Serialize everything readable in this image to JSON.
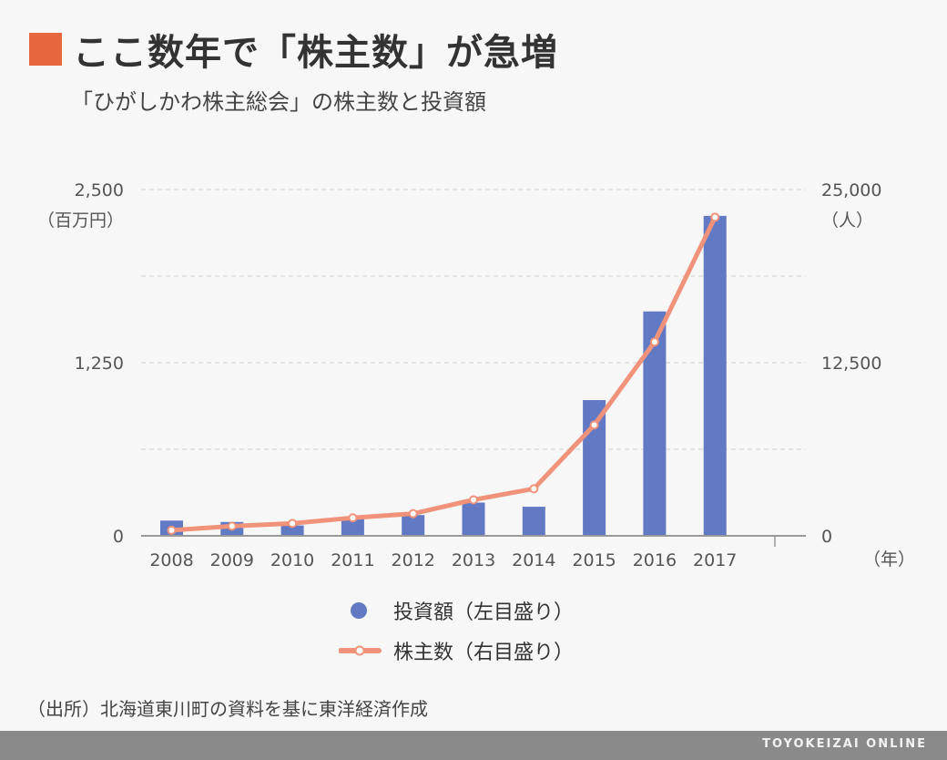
{
  "header": {
    "title": "ここ数年で「株主数」が急増",
    "subtitle": "「ひがしかわ株主総会」の株主数と投資額"
  },
  "legend": {
    "bar_label": "投資額（左目盛り）",
    "line_label": "株主数（右目盛り）"
  },
  "source": "（出所）北海道東川町の資料を基に東洋経済作成",
  "footer": {
    "brand": "TOYOKEIZAI ONLINE"
  },
  "colors": {
    "bar": "#6279c4",
    "line": "#f0937a",
    "accent": "#e8663d"
  },
  "chart_data": {
    "type": "bar",
    "categories": [
      "2008",
      "2009",
      "2010",
      "2011",
      "2012",
      "2013",
      "2014",
      "2015",
      "2016",
      "2017"
    ],
    "xunit": "（年）",
    "left_axis": {
      "unit": "（百万円）",
      "ylim": [
        0,
        2500
      ],
      "ticks": [
        0,
        1250,
        2500
      ],
      "tick_labels": [
        "0",
        "1,250",
        "2,500"
      ]
    },
    "right_axis": {
      "unit": "（人）",
      "ylim": [
        0,
        25000
      ],
      "ticks": [
        0,
        12500,
        25000
      ],
      "tick_labels": [
        "0",
        "12,500",
        "25,000"
      ]
    },
    "series": [
      {
        "name": "投資額（左目盛り）",
        "type": "bar",
        "axis": "left",
        "values": [
          110,
          100,
          75,
          130,
          150,
          240,
          210,
          980,
          1620,
          2310
        ]
      },
      {
        "name": "株主数（右目盛り）",
        "type": "line",
        "axis": "right",
        "values": [
          400,
          700,
          900,
          1300,
          1600,
          2600,
          3400,
          8000,
          14000,
          23000
        ]
      }
    ],
    "grid": true,
    "legend_position": "bottom"
  }
}
